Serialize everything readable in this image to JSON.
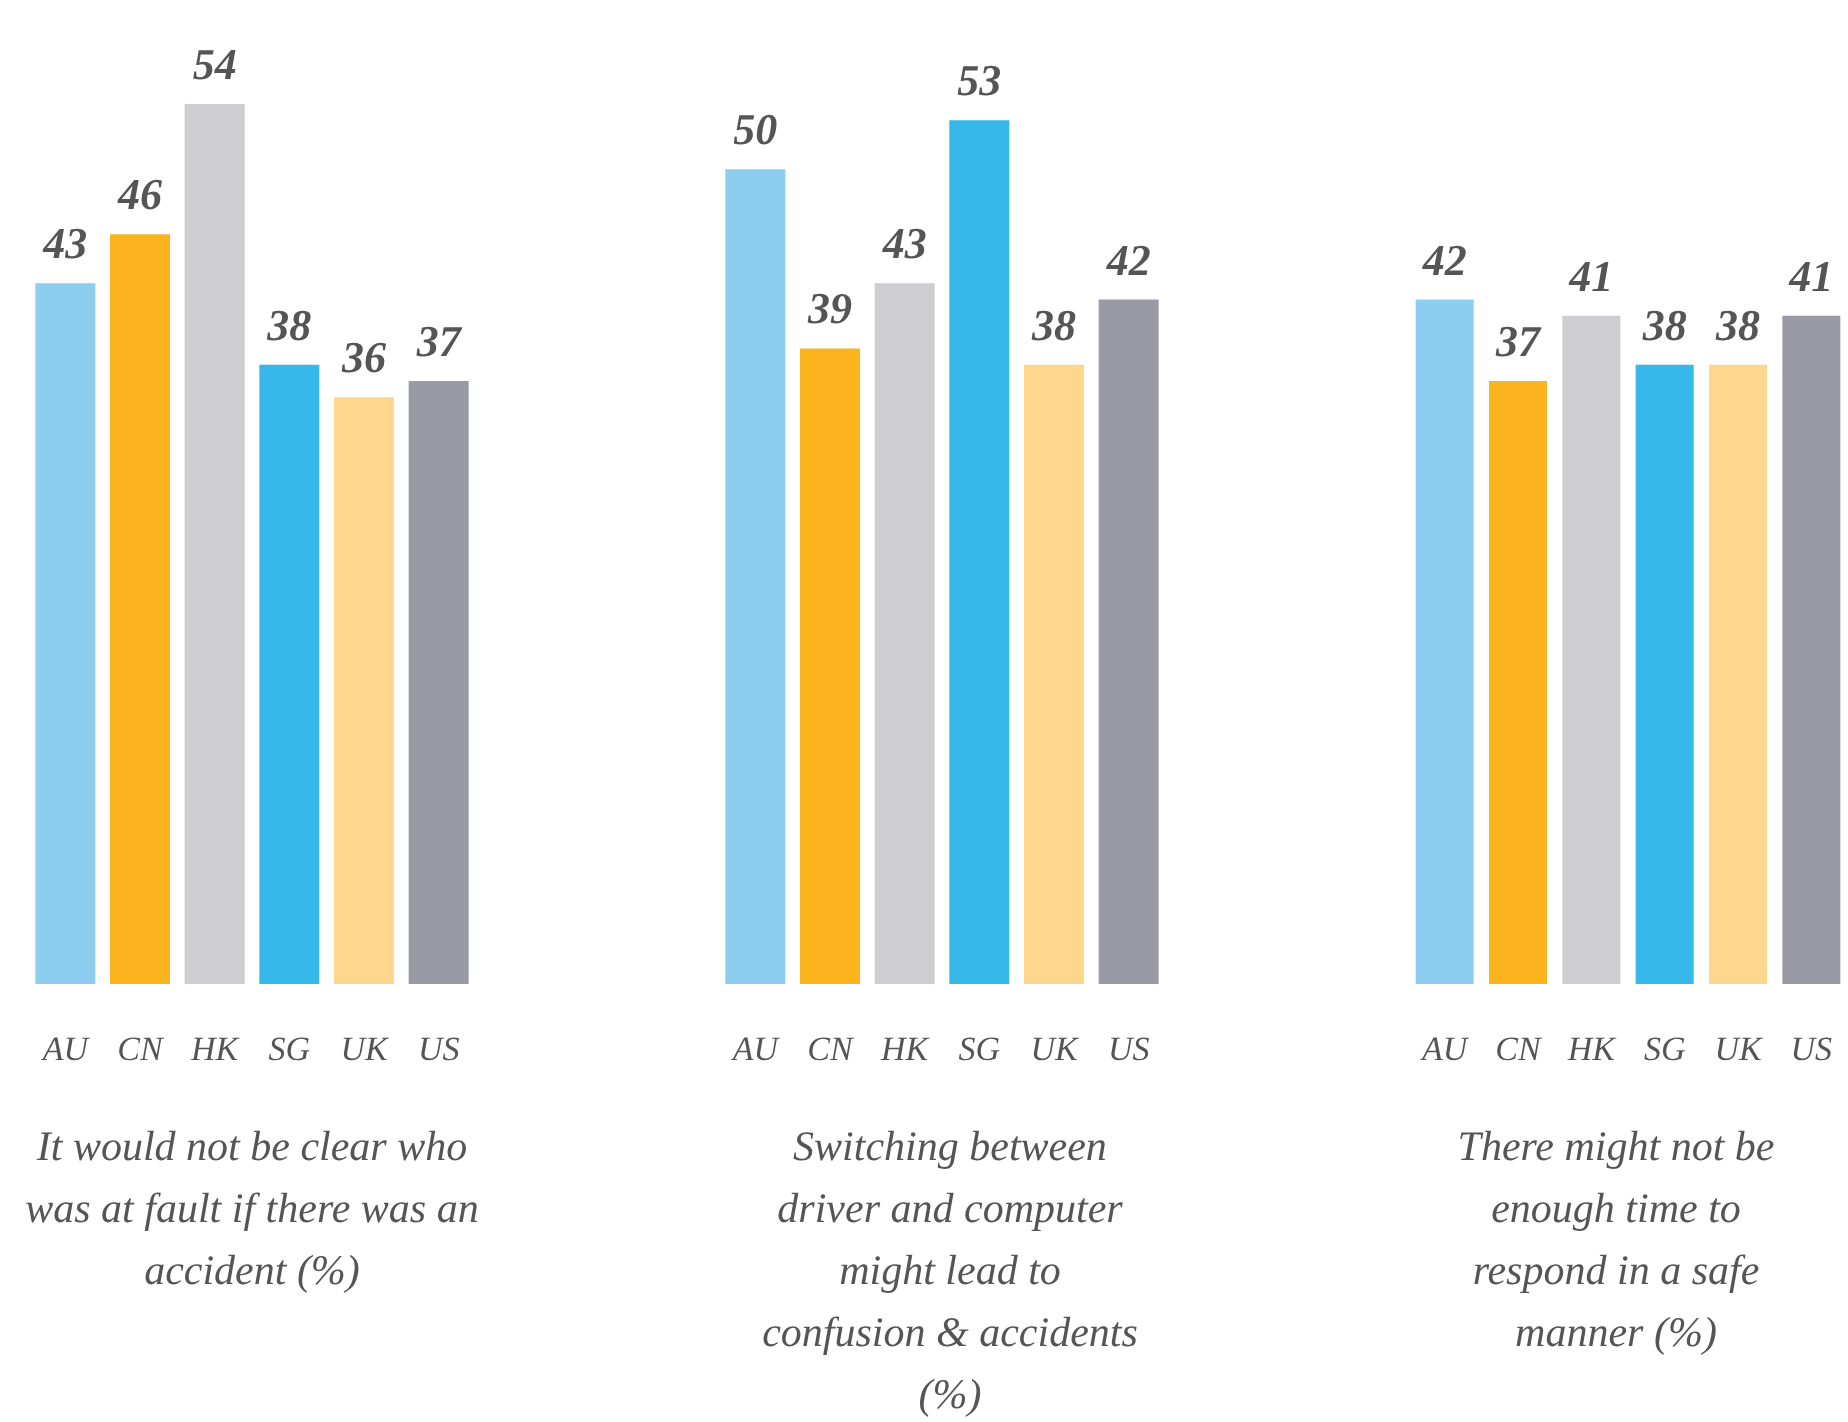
{
  "chart_data": [
    {
      "type": "bar",
      "xlabel": "It would not be clear who was at fault if there was an accident (%)",
      "categories": [
        "AU",
        "CN",
        "HK",
        "SG",
        "UK",
        "US"
      ],
      "values": [
        43,
        46,
        54,
        38,
        36,
        37
      ],
      "colors": [
        "#8ccdf0",
        "#fbb31e",
        "#cdcdd2",
        "#37b8ea",
        "#fed68e",
        "#9a9aa6"
      ],
      "data_labels": true
    },
    {
      "type": "bar",
      "xlabel": "Switching between driver and computer might lead to confusion & accidents (%)",
      "categories": [
        "AU",
        "CN",
        "HK",
        "SG",
        "UK",
        "US"
      ],
      "values": [
        50,
        39,
        43,
        53,
        38,
        42
      ],
      "colors": [
        "#8ccdf0",
        "#fbb31e",
        "#cdcdd2",
        "#37b8ea",
        "#fed68e",
        "#9a9aa6"
      ],
      "data_labels": true
    },
    {
      "type": "bar",
      "xlabel": "There might not be enough time to respond in a safe manner (%)",
      "categories": [
        "AU",
        "CN",
        "HK",
        "SG",
        "UK",
        "US"
      ],
      "values": [
        42,
        37,
        41,
        38,
        38,
        41
      ],
      "colors": [
        "#8ccdf0",
        "#fbb31e",
        "#cdcdd2",
        "#37b8ea",
        "#fed68e",
        "#9a9aa6"
      ],
      "data_labels": true
    }
  ]
}
